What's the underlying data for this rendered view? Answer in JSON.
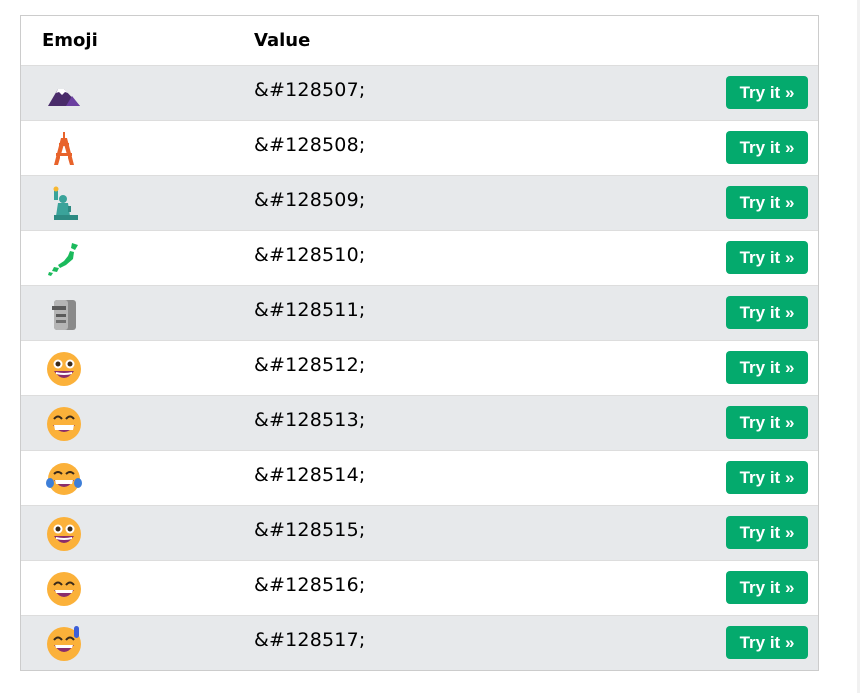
{
  "table": {
    "headers": {
      "emoji": "Emoji",
      "value": "Value"
    },
    "rows": [
      {
        "icon": "mount-fuji-icon",
        "value": "&#128507;",
        "button": "Try it »"
      },
      {
        "icon": "tokyo-tower-icon",
        "value": "&#128508;",
        "button": "Try it »"
      },
      {
        "icon": "statue-of-liberty-icon",
        "value": "&#128509;",
        "button": "Try it »"
      },
      {
        "icon": "map-of-japan-icon",
        "value": "&#128510;",
        "button": "Try it »"
      },
      {
        "icon": "moai-icon",
        "value": "&#128511;",
        "button": "Try it »"
      },
      {
        "icon": "grinning-face-icon",
        "value": "&#128512;",
        "button": "Try it »"
      },
      {
        "icon": "beaming-face-icon",
        "value": "&#128513;",
        "button": "Try it »"
      },
      {
        "icon": "tears-of-joy-face-icon",
        "value": "&#128514;",
        "button": "Try it »"
      },
      {
        "icon": "grinning-big-eyes-face-icon",
        "value": "&#128515;",
        "button": "Try it »"
      },
      {
        "icon": "grinning-smiling-eyes-face-icon",
        "value": "&#128516;",
        "button": "Try it »"
      },
      {
        "icon": "grinning-sweat-face-icon",
        "value": "&#128517;",
        "button": "Try it »"
      }
    ]
  },
  "colors": {
    "button": "#04aa6d",
    "shaded_row": "#e7e9eb",
    "border": "#cccccc"
  }
}
